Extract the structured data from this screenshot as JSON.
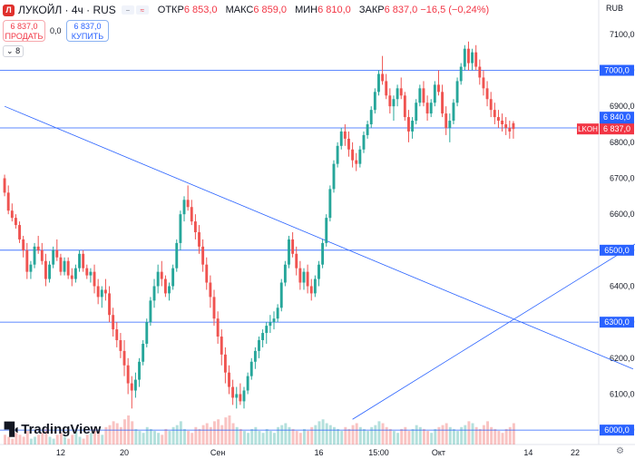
{
  "header": {
    "logo_text": "Л",
    "title": "ЛУКОЙЛ · 4ч · RUS",
    "ohlc": [
      {
        "k": "ОТКР",
        "v": "6 853,0"
      },
      {
        "k": "МАКС",
        "v": "6 859,0"
      },
      {
        "k": "МИН",
        "v": "6 810,0"
      },
      {
        "k": "ЗАКР",
        "v": "6 837,0 −16,5 (−0,24%)"
      }
    ]
  },
  "trade": {
    "sell_price": "6 837,0",
    "sell_label": "ПРОДАТЬ",
    "spread": "0,0",
    "buy_price": "6 837,0",
    "buy_label": "КУПИТЬ"
  },
  "indicator_toggle": "8",
  "currency": "RUB",
  "brand": "TradingView",
  "colors": {
    "up": "#26a69a",
    "down": "#ef5350",
    "hline": "#2962ff",
    "trend": "#2962ff",
    "last_price": "#f23645"
  },
  "chart_data": {
    "type": "candlestick",
    "title": "ЛУКОЙЛ · 4ч · RUS",
    "ylim": [
      5960,
      7140
    ],
    "y_ticks": [
      6000,
      6100,
      6200,
      6300,
      6400,
      6500,
      6600,
      6700,
      6800,
      6900,
      7000,
      7100
    ],
    "y_tick_labels": [
      "6000,0",
      "6100,0",
      "6200,0",
      "6300,0",
      "6400,0",
      "6500,0",
      "6600,0",
      "6700,0",
      "6800,0",
      "6900,0",
      "7000,0",
      "7100,0"
    ],
    "x_tick_labels": [
      "12",
      "20",
      "Сен",
      "16",
      "15:00",
      "Окт",
      "14",
      "22"
    ],
    "horizontal_levels": [
      7000,
      6840,
      6500,
      6300,
      6000
    ],
    "last_price": {
      "label": "LKOH",
      "value": "6 837,0"
    },
    "extra_price_label": "6 840,0",
    "trendlines": [
      {
        "from": {
          "index": 0,
          "price": 6900
        },
        "to": {
          "index": 168,
          "price": 6170
        }
      },
      {
        "from": {
          "index": 93,
          "price": 6030
        },
        "to": {
          "index": 231,
          "price": 6920
        }
      }
    ],
    "candles_ohlc": [
      [
        6700,
        6710,
        6650,
        6660
      ],
      [
        6660,
        6680,
        6600,
        6610
      ],
      [
        6610,
        6630,
        6580,
        6590
      ],
      [
        6590,
        6600,
        6560,
        6570
      ],
      [
        6570,
        6580,
        6520,
        6530
      ],
      [
        6530,
        6540,
        6480,
        6500
      ],
      [
        6500,
        6520,
        6420,
        6440
      ],
      [
        6440,
        6470,
        6420,
        6460
      ],
      [
        6460,
        6520,
        6450,
        6510
      ],
      [
        6510,
        6540,
        6490,
        6500
      ],
      [
        6500,
        6520,
        6460,
        6470
      ],
      [
        6470,
        6490,
        6400,
        6420
      ],
      [
        6420,
        6470,
        6410,
        6460
      ],
      [
        6460,
        6510,
        6450,
        6500
      ],
      [
        6500,
        6530,
        6470,
        6480
      ],
      [
        6480,
        6490,
        6430,
        6440
      ],
      [
        6440,
        6480,
        6430,
        6470
      ],
      [
        6470,
        6480,
        6420,
        6430
      ],
      [
        6430,
        6450,
        6400,
        6420
      ],
      [
        6420,
        6460,
        6410,
        6450
      ],
      [
        6450,
        6500,
        6440,
        6490
      ],
      [
        6490,
        6500,
        6440,
        6450
      ],
      [
        6450,
        6460,
        6420,
        6430
      ],
      [
        6430,
        6450,
        6410,
        6440
      ],
      [
        6440,
        6460,
        6380,
        6400
      ],
      [
        6400,
        6420,
        6350,
        6370
      ],
      [
        6370,
        6400,
        6340,
        6390
      ],
      [
        6390,
        6420,
        6360,
        6380
      ],
      [
        6380,
        6400,
        6300,
        6320
      ],
      [
        6320,
        6340,
        6260,
        6280
      ],
      [
        6280,
        6300,
        6230,
        6250
      ],
      [
        6250,
        6270,
        6200,
        6220
      ],
      [
        6220,
        6250,
        6150,
        6180
      ],
      [
        6180,
        6200,
        6100,
        6130
      ],
      [
        6130,
        6150,
        6060,
        6110
      ],
      [
        6110,
        6160,
        6090,
        6140
      ],
      [
        6140,
        6200,
        6120,
        6190
      ],
      [
        6190,
        6250,
        6180,
        6240
      ],
      [
        6240,
        6310,
        6230,
        6300
      ],
      [
        6300,
        6370,
        6290,
        6360
      ],
      [
        6360,
        6420,
        6340,
        6400
      ],
      [
        6400,
        6460,
        6380,
        6440
      ],
      [
        6440,
        6470,
        6400,
        6420
      ],
      [
        6420,
        6430,
        6370,
        6380
      ],
      [
        6380,
        6410,
        6360,
        6400
      ],
      [
        6400,
        6460,
        6390,
        6450
      ],
      [
        6450,
        6530,
        6440,
        6520
      ],
      [
        6520,
        6610,
        6500,
        6600
      ],
      [
        6600,
        6650,
        6580,
        6640
      ],
      [
        6640,
        6680,
        6610,
        6620
      ],
      [
        6620,
        6640,
        6570,
        6580
      ],
      [
        6580,
        6600,
        6530,
        6550
      ],
      [
        6550,
        6570,
        6490,
        6510
      ],
      [
        6510,
        6530,
        6440,
        6460
      ],
      [
        6460,
        6480,
        6390,
        6410
      ],
      [
        6410,
        6430,
        6340,
        6370
      ],
      [
        6370,
        6390,
        6290,
        6310
      ],
      [
        6310,
        6330,
        6240,
        6260
      ],
      [
        6260,
        6280,
        6180,
        6210
      ],
      [
        6210,
        6230,
        6130,
        6160
      ],
      [
        6160,
        6180,
        6100,
        6120
      ],
      [
        6120,
        6140,
        6070,
        6090
      ],
      [
        6090,
        6120,
        6060,
        6100
      ],
      [
        6100,
        6130,
        6070,
        6080
      ],
      [
        6080,
        6120,
        6060,
        6110
      ],
      [
        6110,
        6160,
        6100,
        6150
      ],
      [
        6150,
        6200,
        6140,
        6190
      ],
      [
        6190,
        6230,
        6170,
        6220
      ],
      [
        6220,
        6260,
        6200,
        6250
      ],
      [
        6250,
        6280,
        6230,
        6270
      ],
      [
        6270,
        6300,
        6240,
        6290
      ],
      [
        6290,
        6320,
        6270,
        6300
      ],
      [
        6300,
        6330,
        6280,
        6310
      ],
      [
        6310,
        6350,
        6300,
        6340
      ],
      [
        6340,
        6420,
        6330,
        6410
      ],
      [
        6410,
        6470,
        6400,
        6460
      ],
      [
        6460,
        6540,
        6450,
        6530
      ],
      [
        6530,
        6550,
        6480,
        6490
      ],
      [
        6490,
        6510,
        6430,
        6450
      ],
      [
        6450,
        6470,
        6390,
        6410
      ],
      [
        6410,
        6450,
        6390,
        6440
      ],
      [
        6440,
        6460,
        6380,
        6400
      ],
      [
        6400,
        6420,
        6360,
        6380
      ],
      [
        6380,
        6430,
        6370,
        6420
      ],
      [
        6420,
        6470,
        6400,
        6460
      ],
      [
        6460,
        6530,
        6450,
        6520
      ],
      [
        6520,
        6600,
        6510,
        6590
      ],
      [
        6590,
        6680,
        6580,
        6670
      ],
      [
        6670,
        6750,
        6660,
        6740
      ],
      [
        6740,
        6800,
        6730,
        6790
      ],
      [
        6790,
        6840,
        6780,
        6830
      ],
      [
        6830,
        6850,
        6790,
        6810
      ],
      [
        6810,
        6830,
        6760,
        6780
      ],
      [
        6780,
        6800,
        6730,
        6750
      ],
      [
        6750,
        6770,
        6720,
        6740
      ],
      [
        6740,
        6790,
        6730,
        6780
      ],
      [
        6780,
        6830,
        6770,
        6820
      ],
      [
        6820,
        6860,
        6810,
        6850
      ],
      [
        6850,
        6900,
        6840,
        6890
      ],
      [
        6890,
        6950,
        6880,
        6940
      ],
      [
        6940,
        7000,
        6930,
        6990
      ],
      [
        6990,
        7040,
        6960,
        6970
      ],
      [
        6970,
        6990,
        6920,
        6930
      ],
      [
        6930,
        6950,
        6880,
        6900
      ],
      [
        6900,
        6930,
        6860,
        6920
      ],
      [
        6920,
        6960,
        6900,
        6950
      ],
      [
        6950,
        6980,
        6920,
        6930
      ],
      [
        6930,
        6940,
        6860,
        6870
      ],
      [
        6870,
        6890,
        6800,
        6830
      ],
      [
        6830,
        6870,
        6810,
        6860
      ],
      [
        6860,
        6920,
        6850,
        6910
      ],
      [
        6910,
        6960,
        6900,
        6950
      ],
      [
        6950,
        6970,
        6900,
        6910
      ],
      [
        6910,
        6930,
        6860,
        6880
      ],
      [
        6880,
        6920,
        6870,
        6910
      ],
      [
        6910,
        6970,
        6900,
        6960
      ],
      [
        6960,
        7000,
        6930,
        6940
      ],
      [
        6940,
        6960,
        6870,
        6880
      ],
      [
        6880,
        6900,
        6820,
        6840
      ],
      [
        6840,
        6880,
        6800,
        6860
      ],
      [
        6860,
        6920,
        6850,
        6910
      ],
      [
        6910,
        6980,
        6900,
        6970
      ],
      [
        6970,
        7020,
        6960,
        7010
      ],
      [
        7010,
        7070,
        7000,
        7060
      ],
      [
        7060,
        7080,
        7000,
        7020
      ],
      [
        7020,
        7060,
        7000,
        7050
      ],
      [
        7050,
        7070,
        7000,
        7010
      ],
      [
        7010,
        7030,
        6960,
        6980
      ],
      [
        6980,
        7000,
        6930,
        6950
      ],
      [
        6950,
        6970,
        6900,
        6920
      ],
      [
        6920,
        6940,
        6870,
        6890
      ],
      [
        6890,
        6910,
        6850,
        6870
      ],
      [
        6870,
        6890,
        6840,
        6860
      ],
      [
        6860,
        6880,
        6830,
        6850
      ],
      [
        6850,
        6870,
        6820,
        6840
      ],
      [
        6840,
        6860,
        6810,
        6830
      ],
      [
        6853,
        6859,
        6810,
        6837
      ]
    ],
    "volumes": [
      5,
      4,
      3,
      6,
      5,
      4,
      7,
      3,
      4,
      5,
      6,
      8,
      4,
      3,
      5,
      6,
      4,
      3,
      5,
      7,
      4,
      3,
      5,
      6,
      8,
      7,
      5,
      9,
      10,
      12,
      11,
      9,
      13,
      15,
      12,
      8,
      7,
      6,
      9,
      8,
      7,
      6,
      5,
      8,
      7,
      9,
      10,
      12,
      8,
      7,
      6,
      9,
      8,
      10,
      11,
      9,
      12,
      13,
      10,
      14,
      15,
      11,
      9,
      8,
      7,
      6,
      8,
      9,
      7,
      6,
      8,
      7,
      6,
      9,
      10,
      11,
      9,
      8,
      7,
      6,
      8,
      7,
      9,
      10,
      12,
      13,
      11,
      10,
      9,
      8,
      7,
      9,
      8,
      10,
      11,
      9,
      8,
      7,
      9,
      10,
      12,
      11,
      9,
      8,
      7,
      6,
      8,
      9,
      7,
      8,
      10,
      9,
      8,
      7,
      6,
      8,
      9,
      10,
      11,
      9,
      8,
      7,
      9,
      10,
      12,
      11,
      9,
      8,
      10,
      12,
      9,
      8,
      7,
      6,
      8,
      9,
      11
    ]
  }
}
